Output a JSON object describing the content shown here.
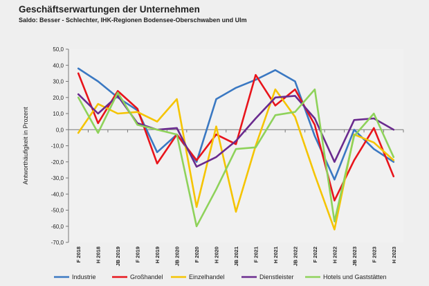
{
  "chart_data": {
    "type": "line",
    "title": "Geschäftserwartungen der Unternehmen",
    "subtitle": "Saldo: Besser - Schlechter, IHK-Regionen Bodensee-Oberschwaben und Ulm",
    "xlabel": "",
    "ylabel": "Antworthäufigkeit in Prozent",
    "ylim": [
      -70,
      50
    ],
    "ytick_step": 10,
    "grid": false,
    "legend": "bottom",
    "categories": [
      "F 2018",
      "H 2018",
      "JB 2019",
      "F 2019",
      "H 2019",
      "JB 2020",
      "F 2020",
      "H 2020",
      "JB 2021",
      "F 2021",
      "H 2021",
      "JB 2022",
      "F 2022",
      "H 2022",
      "JB 2023",
      "F 2023",
      "H 2023"
    ],
    "series": [
      {
        "name": "Industrie",
        "color": "#3a78c2",
        "values": [
          38,
          30,
          20,
          12,
          -14,
          -3,
          -20,
          19,
          26,
          31,
          37,
          30,
          -4,
          -31,
          0,
          -12,
          -20
        ]
      },
      {
        "name": "Großhandel",
        "color": "#e8141b",
        "values": [
          35,
          4,
          24,
          13,
          -21,
          -3,
          -19,
          -3,
          -9,
          34,
          15,
          25,
          3,
          -44,
          -19,
          1,
          -29
        ]
      },
      {
        "name": "Einzelhandel",
        "color": "#f5c400",
        "values": [
          -2,
          16,
          10,
          11,
          5,
          19,
          -48,
          2,
          -51,
          -10,
          25,
          8,
          -28,
          -62,
          -3,
          -8,
          -19
        ]
      },
      {
        "name": "Dienstleister",
        "color": "#6a2a8e",
        "values": [
          22,
          10,
          21,
          4,
          0,
          1,
          -23,
          -17,
          -7,
          7,
          20,
          21,
          7,
          -20,
          6,
          7,
          0
        ]
      },
      {
        "name": "Hotels und Gaststätten",
        "color": "#8ed25a",
        "values": [
          20,
          -2,
          23,
          3,
          0,
          -3,
          -60,
          -37,
          -12,
          -11,
          9,
          11,
          25,
          -57,
          -4,
          10,
          -17
        ]
      }
    ]
  }
}
